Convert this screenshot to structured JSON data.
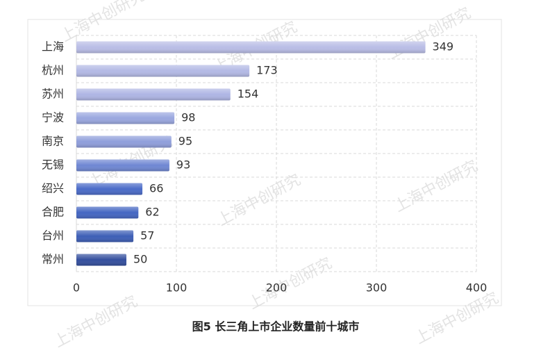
{
  "chart_data": {
    "type": "bar",
    "orientation": "horizontal",
    "title": "图5  长三角上市企业数量前十城市",
    "watermark": "上海中创研究",
    "categories": [
      "上海",
      "杭州",
      "苏州",
      "宁波",
      "南京",
      "无锡",
      "绍兴",
      "合肥",
      "台州",
      "常州"
    ],
    "values": [
      349,
      173,
      154,
      98,
      95,
      93,
      66,
      62,
      57,
      50
    ],
    "colors": [
      "#b9bde6",
      "#b3b9e5",
      "#aeb5e4",
      "#9aa7df",
      "#8f9edb",
      "#6f87d3",
      "#4a6bc8",
      "#4466c2",
      "#3d5eb6",
      "#344f9e"
    ],
    "xlim": [
      0,
      400
    ],
    "xticks": [
      0,
      100,
      200,
      300,
      400
    ],
    "grid": true
  }
}
